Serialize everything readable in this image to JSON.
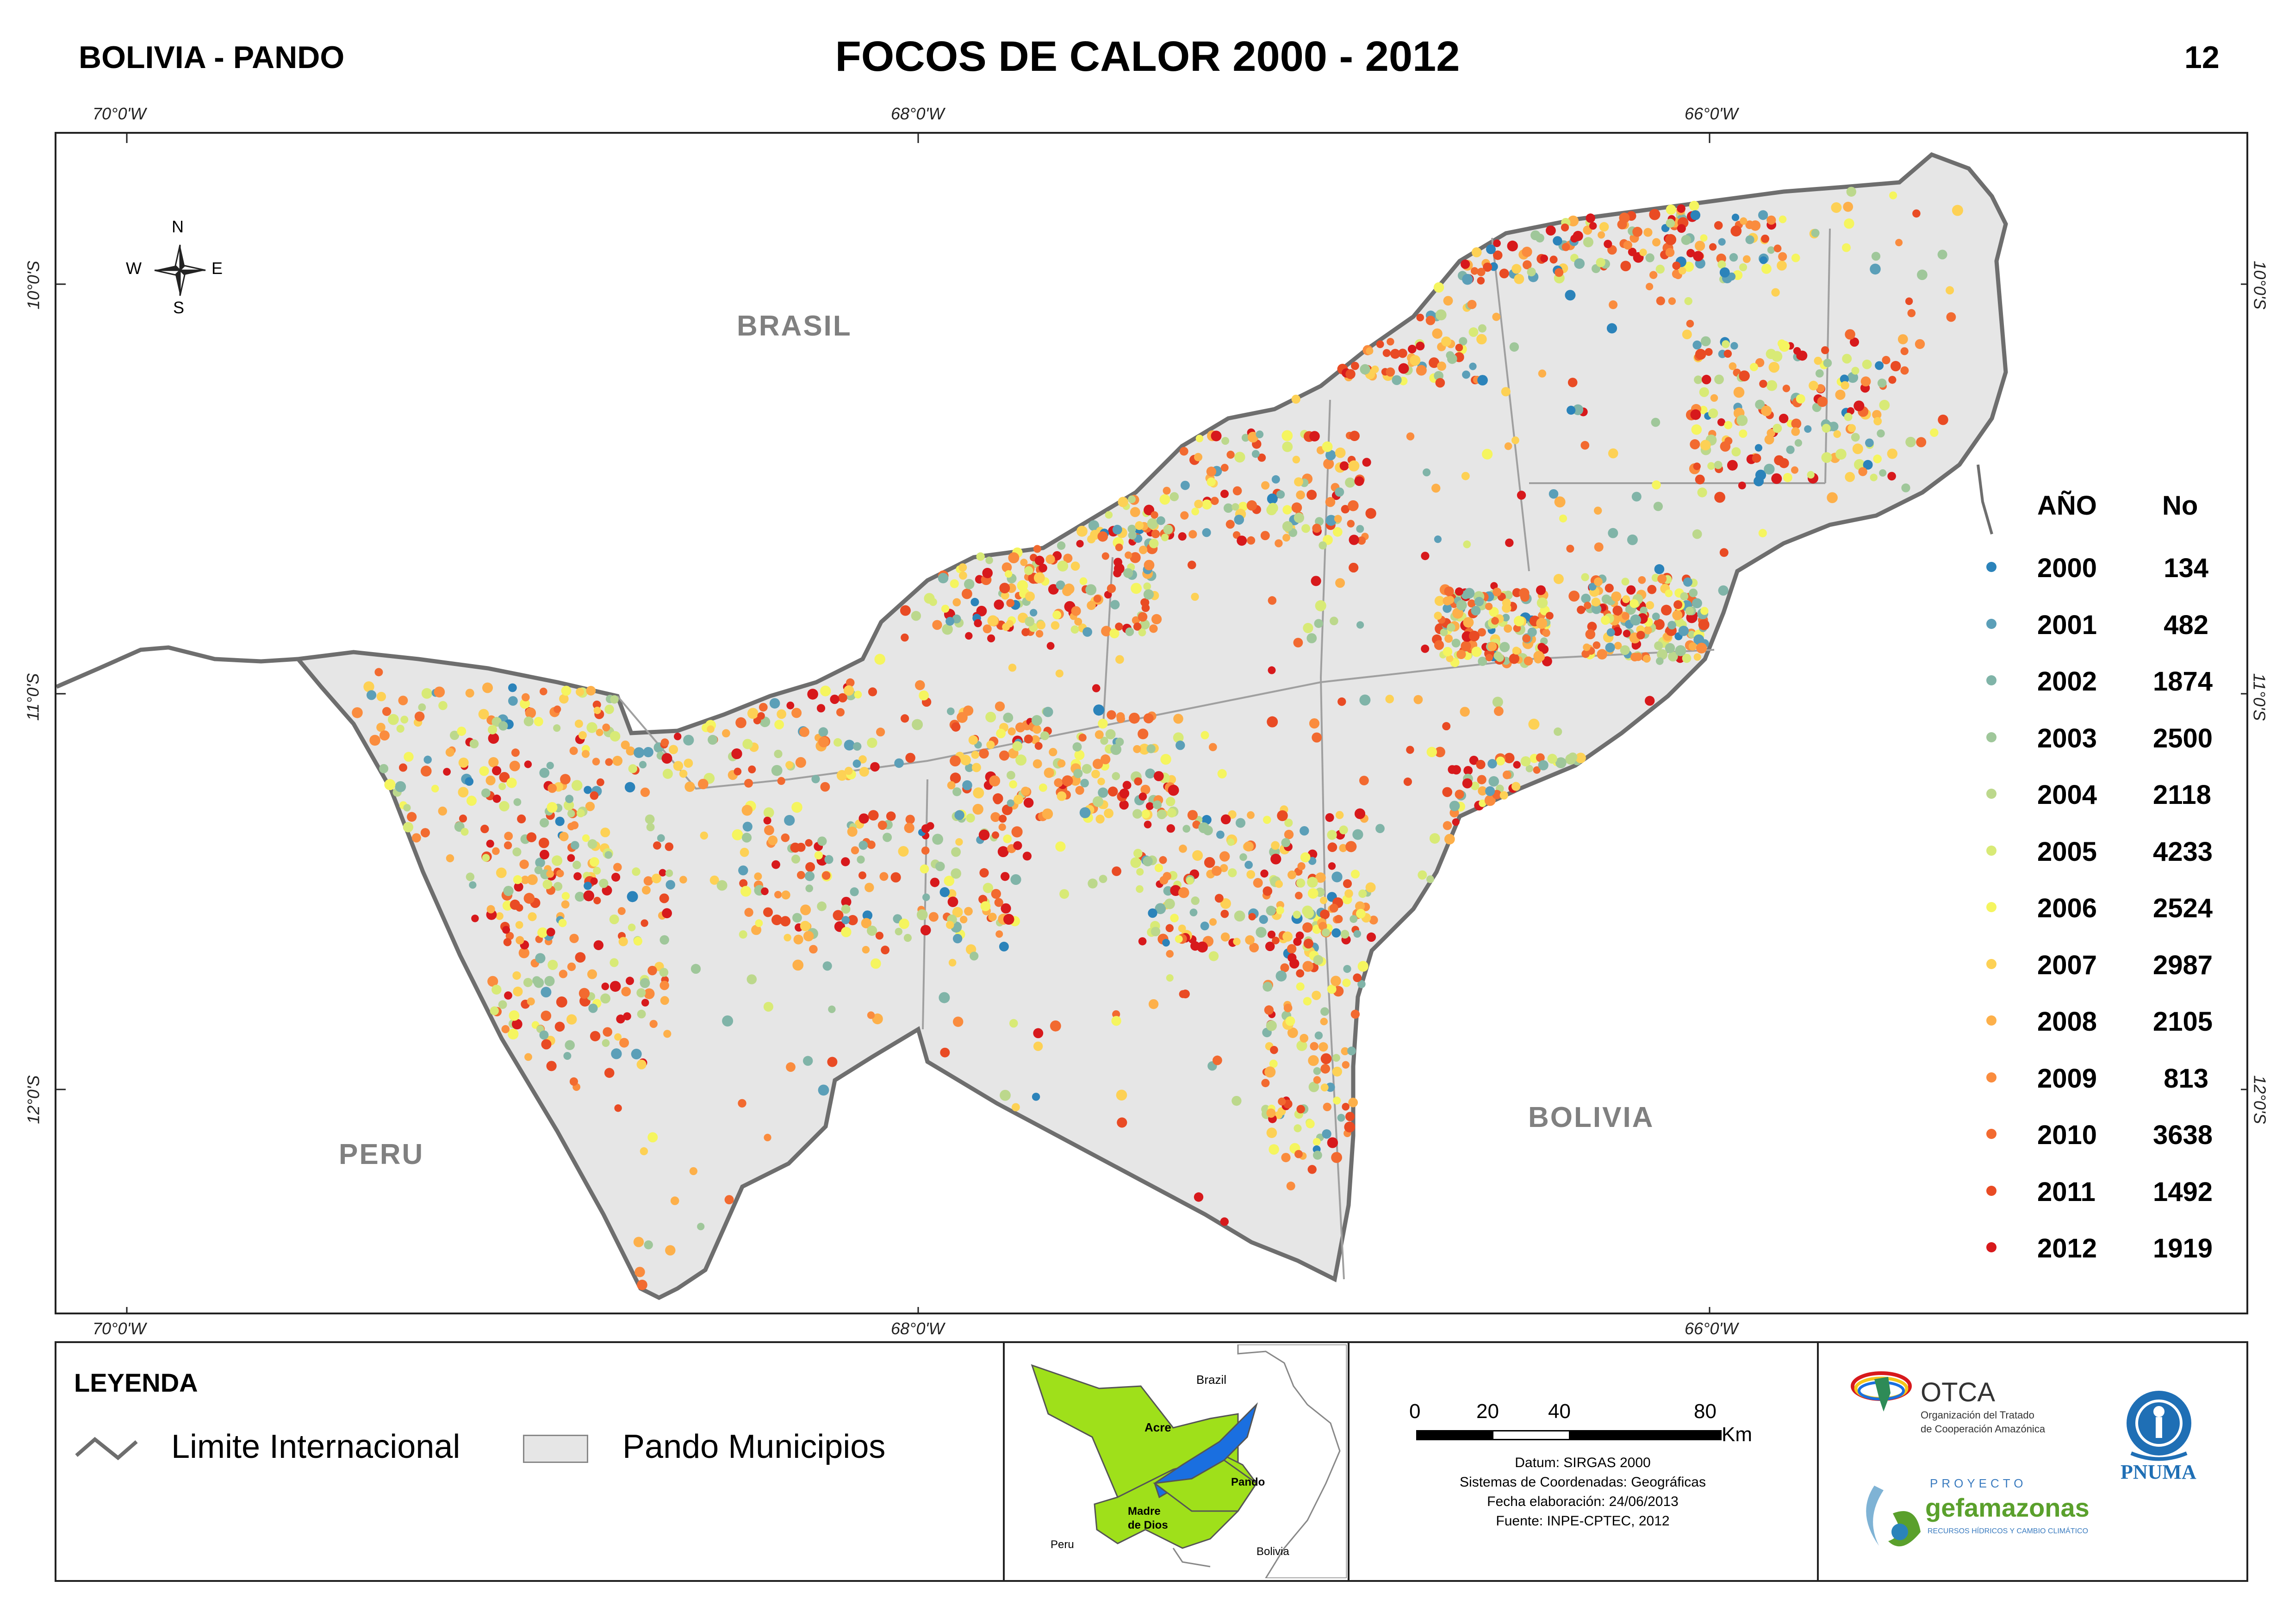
{
  "header": {
    "region": "BOLIVIA - PANDO",
    "title": "FOCOS DE CALOR 2000 - 2012",
    "sheet_number": "12"
  },
  "graticule": {
    "top": [
      "70°0'W",
      "68°0'W",
      "66°0'W"
    ],
    "bottom": [
      "70°0'W",
      "68°0'W",
      "66°0'W"
    ],
    "left": [
      "10°0'S",
      "11°0'S",
      "12°0'S"
    ],
    "right": [
      "10°0'S",
      "11°0'S",
      "12°0'S"
    ]
  },
  "map": {
    "labels": {
      "brasil": "BRASIL",
      "peru": "PERU",
      "bolivia": "BOLIVIA"
    },
    "compass": {
      "n": "N",
      "s": "S",
      "e": "E",
      "w": "W"
    },
    "colors": {
      "land": "#e6e6e6",
      "border": "#6e6e6e",
      "municipal_line": "#a0a0a0"
    }
  },
  "year_legend": {
    "header_year": "AÑO",
    "header_count": "No",
    "rows": [
      {
        "year": "2000",
        "count": "134",
        "color": "#2b83ba"
      },
      {
        "year": "2001",
        "count": "482",
        "color": "#5b9fb8"
      },
      {
        "year": "2002",
        "count": "1874",
        "color": "#80b4a8"
      },
      {
        "year": "2003",
        "count": "2500",
        "color": "#9fc79a"
      },
      {
        "year": "2004",
        "count": "2118",
        "color": "#bcd88c"
      },
      {
        "year": "2005",
        "count": "4233",
        "color": "#d8ea76"
      },
      {
        "year": "2006",
        "count": "2524",
        "color": "#f5f55f"
      },
      {
        "year": "2007",
        "count": "2987",
        "color": "#fdd155"
      },
      {
        "year": "2008",
        "count": "2105",
        "color": "#fdb04a"
      },
      {
        "year": "2009",
        "count": "813",
        "color": "#fa8c3e"
      },
      {
        "year": "2010",
        "count": "3638",
        "color": "#f26a30"
      },
      {
        "year": "2011",
        "count": "1492",
        "color": "#e94b24"
      },
      {
        "year": "2012",
        "count": "1919",
        "color": "#d7191c"
      }
    ]
  },
  "legend": {
    "title": "LEYENDA",
    "line_label": "Limite Internacional",
    "area_label": "Pando Municipios"
  },
  "inset": {
    "brazil": "Brazil",
    "acre": "Acre",
    "madre": "Madre",
    "de_dios": "de Dios",
    "pando": "Pando",
    "peru": "Peru",
    "bolivia": "Bolivia"
  },
  "scale": {
    "ticks": [
      "0",
      "20",
      "40",
      "80"
    ],
    "unit": "Km",
    "datum": "Datum: SIRGAS 2000",
    "coords": "Sistemas de Coordenadas: Geográficas",
    "date": "Fecha elaboración: 24/06/2013",
    "source": "Fuente: INPE-CPTEC, 2012"
  },
  "logos": {
    "otca": "OTCA",
    "otca_line1": "Organización del Tratado",
    "otca_line2": "de Cooperación Amazónica",
    "proyecto": "PROYECTO",
    "gef": "gefamazonas",
    "gef_sub": "RECURSOS HÍDRICOS Y CAMBIO CLIMÁTICO",
    "pnuma": "PNUMA"
  }
}
